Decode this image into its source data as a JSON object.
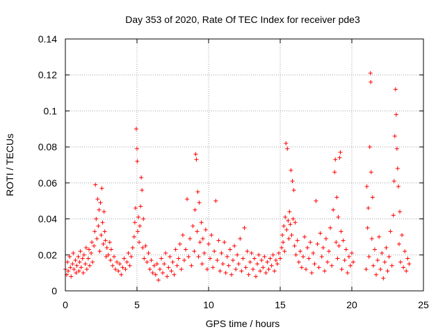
{
  "chart_data": {
    "type": "scatter",
    "title": "Day 353 of 2020, Rate Of TEC Index for receiver pde3",
    "xlabel": "GPS time / hours",
    "ylabel": "ROTI / TECUs",
    "xlim": [
      0,
      25
    ],
    "ylim": [
      0,
      0.14
    ],
    "xticks": [
      0,
      5,
      10,
      15,
      20,
      25
    ],
    "yticks": [
      0,
      0.02,
      0.04,
      0.06,
      0.08,
      0.1,
      0.12,
      0.14
    ],
    "xtick_labels": [
      "0",
      "5",
      "10",
      "15",
      "20",
      "25"
    ],
    "ytick_labels": [
      "0",
      "0.02",
      "0.04",
      "0.06",
      "0.08",
      "0.1",
      "0.12",
      "0.14"
    ],
    "grid": true,
    "marker": "plus",
    "color": "#ff0000",
    "series": [
      {
        "values": [
          [
            0.0,
            0.012
          ],
          [
            0.1,
            0.009
          ],
          [
            0.15,
            0.016
          ],
          [
            0.2,
            0.011
          ],
          [
            0.3,
            0.019
          ],
          [
            0.35,
            0.013
          ],
          [
            0.4,
            0.008
          ],
          [
            0.5,
            0.015
          ],
          [
            0.55,
            0.021
          ],
          [
            0.6,
            0.012
          ],
          [
            0.7,
            0.017
          ],
          [
            0.75,
            0.01
          ],
          [
            0.8,
            0.014
          ],
          [
            0.9,
            0.019
          ],
          [
            0.95,
            0.011
          ],
          [
            1.0,
            0.016
          ],
          [
            1.05,
            0.022
          ],
          [
            1.1,
            0.013
          ],
          [
            1.2,
            0.018
          ],
          [
            1.25,
            0.01
          ],
          [
            1.3,
            0.02
          ],
          [
            1.4,
            0.015
          ],
          [
            1.45,
            0.024
          ],
          [
            1.5,
            0.012
          ],
          [
            1.6,
            0.018
          ],
          [
            1.65,
            0.023
          ],
          [
            1.7,
            0.014
          ],
          [
            1.8,
            0.021
          ],
          [
            1.85,
            0.027
          ],
          [
            1.9,
            0.016
          ],
          [
            2.0,
            0.025
          ],
          [
            2.05,
            0.033
          ],
          [
            2.1,
            0.059
          ],
          [
            2.15,
            0.04
          ],
          [
            2.2,
            0.029
          ],
          [
            2.25,
            0.051
          ],
          [
            2.3,
            0.036
          ],
          [
            2.35,
            0.045
          ],
          [
            2.4,
            0.022
          ],
          [
            2.45,
            0.049
          ],
          [
            2.5,
            0.031
          ],
          [
            2.55,
            0.057
          ],
          [
            2.6,
            0.038
          ],
          [
            2.65,
            0.026
          ],
          [
            2.7,
            0.044
          ],
          [
            2.75,
            0.033
          ],
          [
            2.8,
            0.028
          ],
          [
            2.85,
            0.019
          ],
          [
            2.9,
            0.024
          ],
          [
            3.0,
            0.02
          ],
          [
            3.1,
            0.027
          ],
          [
            3.15,
            0.017
          ],
          [
            3.2,
            0.023
          ],
          [
            3.3,
            0.014
          ],
          [
            3.4,
            0.019
          ],
          [
            3.5,
            0.012
          ],
          [
            3.6,
            0.016
          ],
          [
            3.7,
            0.011
          ],
          [
            3.8,
            0.015
          ],
          [
            3.9,
            0.009
          ],
          [
            4.0,
            0.013
          ],
          [
            4.1,
            0.018
          ],
          [
            4.2,
            0.012
          ],
          [
            4.3,
            0.016
          ],
          [
            4.4,
            0.021
          ],
          [
            4.5,
            0.014
          ],
          [
            4.6,
            0.019
          ],
          [
            4.7,
            0.024
          ],
          [
            4.8,
            0.03
          ],
          [
            4.85,
            0.038
          ],
          [
            4.9,
            0.046
          ],
          [
            4.95,
            0.09
          ],
          [
            5.0,
            0.079
          ],
          [
            5.02,
            0.072
          ],
          [
            5.05,
            0.033
          ],
          [
            5.1,
            0.041
          ],
          [
            5.15,
            0.027
          ],
          [
            5.2,
            0.036
          ],
          [
            5.25,
            0.047
          ],
          [
            5.3,
            0.063
          ],
          [
            5.35,
            0.056
          ],
          [
            5.4,
            0.024
          ],
          [
            5.45,
            0.04
          ],
          [
            5.5,
            0.018
          ],
          [
            5.6,
            0.025
          ],
          [
            5.7,
            0.016
          ],
          [
            5.8,
            0.021
          ],
          [
            5.9,
            0.012
          ],
          [
            6.0,
            0.017
          ],
          [
            6.1,
            0.01
          ],
          [
            6.2,
            0.014
          ],
          [
            6.3,
            0.009
          ],
          [
            6.4,
            0.015
          ],
          [
            6.5,
            0.006
          ],
          [
            6.6,
            0.012
          ],
          [
            6.7,
            0.018
          ],
          [
            6.8,
            0.01
          ],
          [
            6.9,
            0.015
          ],
          [
            7.0,
            0.021
          ],
          [
            7.1,
            0.008
          ],
          [
            7.2,
            0.013
          ],
          [
            7.3,
            0.019
          ],
          [
            7.4,
            0.011
          ],
          [
            7.5,
            0.016
          ],
          [
            7.6,
            0.009
          ],
          [
            7.7,
            0.023
          ],
          [
            7.8,
            0.014
          ],
          [
            7.9,
            0.018
          ],
          [
            8.0,
            0.026
          ],
          [
            8.1,
            0.012
          ],
          [
            8.2,
            0.031
          ],
          [
            8.3,
            0.017
          ],
          [
            8.4,
            0.023
          ],
          [
            8.5,
            0.051
          ],
          [
            8.6,
            0.019
          ],
          [
            8.7,
            0.029
          ],
          [
            8.8,
            0.014
          ],
          [
            8.9,
            0.036
          ],
          [
            9.0,
            0.022
          ],
          [
            9.05,
            0.045
          ],
          [
            9.1,
            0.076
          ],
          [
            9.15,
            0.073
          ],
          [
            9.2,
            0.033
          ],
          [
            9.25,
            0.055
          ],
          [
            9.3,
            0.019
          ],
          [
            9.35,
            0.049
          ],
          [
            9.4,
            0.027
          ],
          [
            9.5,
            0.038
          ],
          [
            9.55,
            0.015
          ],
          [
            9.6,
            0.029
          ],
          [
            9.7,
            0.021
          ],
          [
            9.8,
            0.034
          ],
          [
            9.9,
            0.012
          ],
          [
            10.0,
            0.026
          ],
          [
            10.1,
            0.018
          ],
          [
            10.2,
            0.031
          ],
          [
            10.3,
            0.013
          ],
          [
            10.4,
            0.022
          ],
          [
            10.5,
            0.05
          ],
          [
            10.6,
            0.017
          ],
          [
            10.7,
            0.028
          ],
          [
            10.8,
            0.011
          ],
          [
            10.9,
            0.021
          ],
          [
            11.0,
            0.015
          ],
          [
            11.1,
            0.027
          ],
          [
            11.2,
            0.01
          ],
          [
            11.3,
            0.019
          ],
          [
            11.4,
            0.014
          ],
          [
            11.5,
            0.023
          ],
          [
            11.6,
            0.009
          ],
          [
            11.7,
            0.017
          ],
          [
            11.8,
            0.025
          ],
          [
            11.9,
            0.012
          ],
          [
            12.0,
            0.02
          ],
          [
            12.1,
            0.015
          ],
          [
            12.2,
            0.029
          ],
          [
            12.3,
            0.011
          ],
          [
            12.4,
            0.018
          ],
          [
            12.5,
            0.035
          ],
          [
            12.6,
            0.013
          ],
          [
            12.7,
            0.022
          ],
          [
            12.8,
            0.009
          ],
          [
            12.9,
            0.016
          ],
          [
            13.0,
            0.021
          ],
          [
            13.1,
            0.012
          ],
          [
            13.2,
            0.018
          ],
          [
            13.3,
            0.008
          ],
          [
            13.4,
            0.015
          ],
          [
            13.5,
            0.02
          ],
          [
            13.6,
            0.011
          ],
          [
            13.7,
            0.017
          ],
          [
            13.8,
            0.013
          ],
          [
            13.9,
            0.019
          ],
          [
            14.0,
            0.01
          ],
          [
            14.1,
            0.016
          ],
          [
            14.2,
            0.012
          ],
          [
            14.3,
            0.018
          ],
          [
            14.4,
            0.014
          ],
          [
            14.5,
            0.02
          ],
          [
            14.6,
            0.011
          ],
          [
            14.7,
            0.017
          ],
          [
            14.8,
            0.015
          ],
          [
            14.9,
            0.021
          ],
          [
            15.0,
            0.018
          ],
          [
            15.1,
            0.024
          ],
          [
            15.15,
            0.031
          ],
          [
            15.2,
            0.027
          ],
          [
            15.25,
            0.036
          ],
          [
            15.3,
            0.022
          ],
          [
            15.35,
            0.041
          ],
          [
            15.4,
            0.082
          ],
          [
            15.45,
            0.034
          ],
          [
            15.5,
            0.079
          ],
          [
            15.55,
            0.039
          ],
          [
            15.6,
            0.029
          ],
          [
            15.65,
            0.044
          ],
          [
            15.7,
            0.037
          ],
          [
            15.75,
            0.067
          ],
          [
            15.8,
            0.031
          ],
          [
            15.85,
            0.061
          ],
          [
            15.9,
            0.04
          ],
          [
            15.95,
            0.056
          ],
          [
            16.0,
            0.025
          ],
          [
            16.05,
            0.038
          ],
          [
            16.1,
            0.02
          ],
          [
            16.2,
            0.028
          ],
          [
            16.3,
            0.016
          ],
          [
            16.4,
            0.022
          ],
          [
            16.5,
            0.013
          ],
          [
            16.6,
            0.019
          ],
          [
            16.7,
            0.03
          ],
          [
            16.8,
            0.012
          ],
          [
            16.9,
            0.024
          ],
          [
            17.0,
            0.018
          ],
          [
            17.1,
            0.027
          ],
          [
            17.2,
            0.01
          ],
          [
            17.3,
            0.021
          ],
          [
            17.4,
            0.015
          ],
          [
            17.5,
            0.05
          ],
          [
            17.6,
            0.026
          ],
          [
            17.7,
            0.013
          ],
          [
            17.8,
            0.032
          ],
          [
            17.9,
            0.019
          ],
          [
            18.0,
            0.024
          ],
          [
            18.1,
            0.011
          ],
          [
            18.2,
            0.029
          ],
          [
            18.3,
            0.016
          ],
          [
            18.4,
            0.022
          ],
          [
            18.5,
            0.035
          ],
          [
            18.6,
            0.014
          ],
          [
            18.7,
            0.045
          ],
          [
            18.8,
            0.066
          ],
          [
            18.85,
            0.073
          ],
          [
            18.9,
            0.027
          ],
          [
            18.95,
            0.052
          ],
          [
            19.0,
            0.018
          ],
          [
            19.05,
            0.041
          ],
          [
            19.1,
            0.025
          ],
          [
            19.15,
            0.074
          ],
          [
            19.2,
            0.077
          ],
          [
            19.25,
            0.033
          ],
          [
            19.3,
            0.012
          ],
          [
            19.4,
            0.028
          ],
          [
            19.5,
            0.017
          ],
          [
            19.6,
            0.023
          ],
          [
            19.7,
            0.01
          ],
          [
            19.8,
            0.019
          ],
          [
            19.9,
            0.014
          ],
          [
            20.0,
            0.021
          ],
          [
            20.1,
            0.016
          ],
          [
            21.0,
            0.012
          ],
          [
            21.05,
            0.058
          ],
          [
            21.1,
            0.035
          ],
          [
            21.15,
            0.046
          ],
          [
            21.2,
            0.019
          ],
          [
            21.25,
            0.08
          ],
          [
            21.3,
            0.121
          ],
          [
            21.32,
            0.116
          ],
          [
            21.35,
            0.066
          ],
          [
            21.4,
            0.029
          ],
          [
            21.45,
            0.052
          ],
          [
            21.5,
            0.014
          ],
          [
            21.6,
            0.023
          ],
          [
            21.7,
            0.009
          ],
          [
            21.8,
            0.017
          ],
          [
            21.9,
            0.03
          ],
          [
            22.0,
            0.012
          ],
          [
            22.1,
            0.021
          ],
          [
            22.2,
            0.007
          ],
          [
            22.3,
            0.016
          ],
          [
            22.4,
            0.024
          ],
          [
            22.5,
            0.011
          ],
          [
            22.6,
            0.019
          ],
          [
            22.7,
            0.033
          ],
          [
            22.8,
            0.014
          ],
          [
            22.9,
            0.042
          ],
          [
            22.95,
            0.061
          ],
          [
            23.0,
            0.086
          ],
          [
            23.05,
            0.112
          ],
          [
            23.1,
            0.098
          ],
          [
            23.15,
            0.079
          ],
          [
            23.2,
            0.068
          ],
          [
            23.25,
            0.058
          ],
          [
            23.3,
            0.026
          ],
          [
            23.35,
            0.044
          ],
          [
            23.4,
            0.016
          ],
          [
            23.5,
            0.031
          ],
          [
            23.6,
            0.013
          ],
          [
            23.7,
            0.022
          ],
          [
            23.8,
            0.011
          ],
          [
            23.9,
            0.018
          ],
          [
            24.0,
            0.015
          ]
        ]
      }
    ]
  }
}
